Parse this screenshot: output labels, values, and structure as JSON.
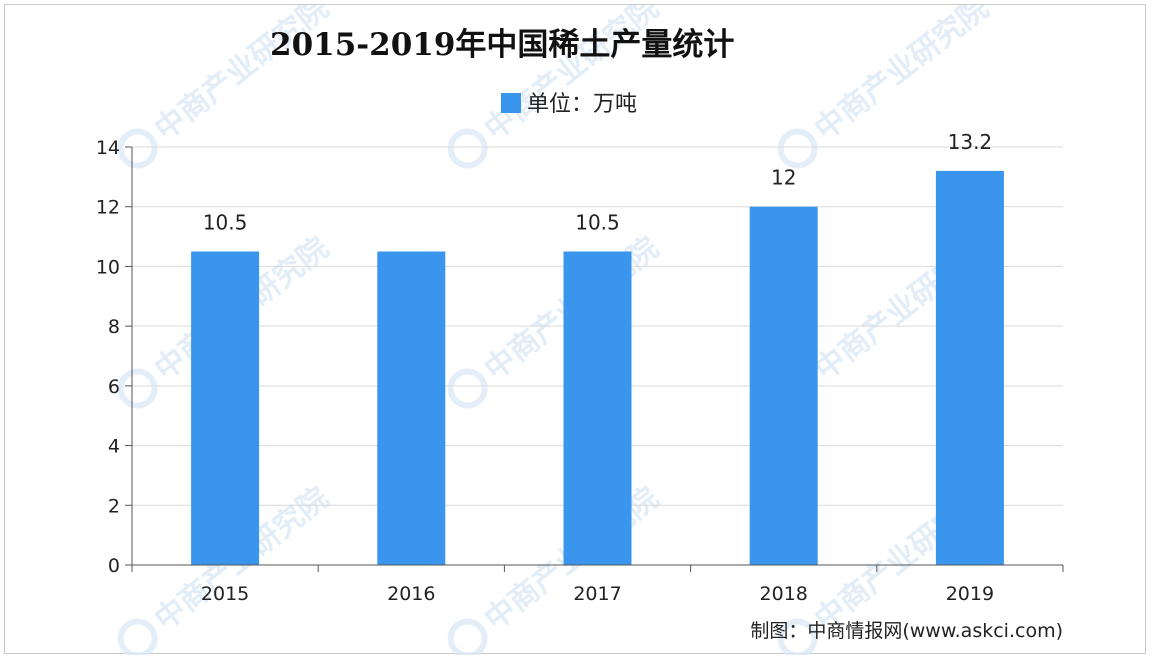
{
  "chart_data": {
    "type": "bar",
    "title": "2015-2019年中国稀土产量统计",
    "legend": {
      "label": "单位：万吨",
      "placement": "top-center"
    },
    "categories": [
      "2015",
      "2016",
      "2017",
      "2018",
      "2019"
    ],
    "series": [
      {
        "name": "单位：万吨",
        "values": [
          10.5,
          10.5,
          10.5,
          12,
          13.2
        ],
        "data_labels": [
          "10.5",
          "",
          "10.5",
          "12",
          "13.2"
        ]
      }
    ],
    "xlabel": "",
    "ylabel": "",
    "ylim": [
      0,
      14
    ],
    "yticks": [
      0,
      2,
      4,
      6,
      8,
      10,
      12,
      14
    ],
    "grid": true,
    "colors": {
      "bar": "#3a96ec",
      "grid": "#d9d9d9",
      "axis": "#555555"
    }
  },
  "watermark": {
    "text": "中商产业研究院"
  },
  "source": {
    "text": "制图：中商情报网(www.askci.com)"
  }
}
